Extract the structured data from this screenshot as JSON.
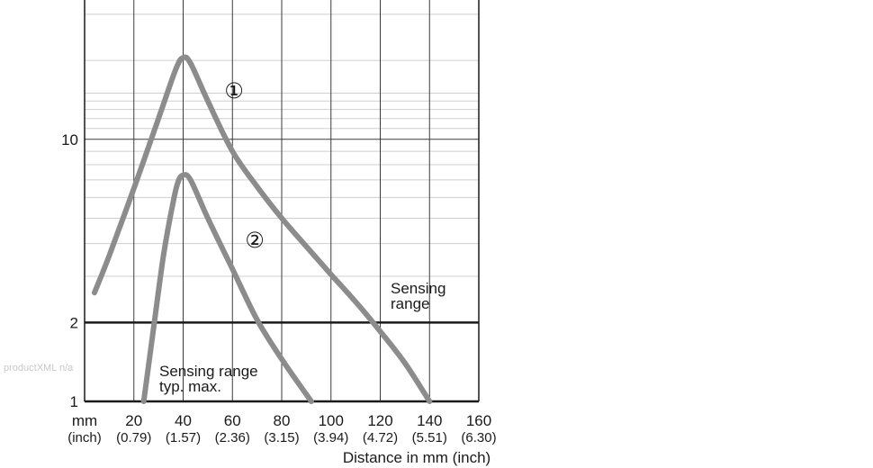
{
  "chart_data": {
    "type": "line",
    "title": "",
    "xlabel": "Distance in mm (inch)",
    "ylabel": "",
    "y_scale": "log",
    "xlim": [
      0,
      160
    ],
    "ylim": [
      1,
      34
    ],
    "grid": true,
    "x_ticks": [
      {
        "value": 0,
        "label": "mm",
        "sub": "(inch)"
      },
      {
        "value": 20,
        "label": "20",
        "sub": "(0.79)"
      },
      {
        "value": 40,
        "label": "40",
        "sub": "(1.57)"
      },
      {
        "value": 60,
        "label": "60",
        "sub": "(2.36)"
      },
      {
        "value": 80,
        "label": "80",
        "sub": "(3.15)"
      },
      {
        "value": 100,
        "label": "100",
        "sub": "(3.94)"
      },
      {
        "value": 120,
        "label": "120",
        "sub": "(4.72)"
      },
      {
        "value": 140,
        "label": "140",
        "sub": "(5.51)"
      },
      {
        "value": 160,
        "label": "160",
        "sub": "(6.30)"
      }
    ],
    "y_ticks": [
      {
        "value": 1,
        "label": "1"
      },
      {
        "value": 2,
        "label": "2"
      },
      {
        "value": 10,
        "label": "10"
      }
    ],
    "threshold": {
      "y": 2,
      "label_line1": "Sensing",
      "label_line2": "range"
    },
    "annotation": {
      "line1": "Sensing range",
      "line2": "typ. max."
    },
    "series": [
      {
        "marker": "①",
        "color": "#8c8c8c",
        "x": [
          4,
          10,
          20,
          30,
          37,
          40,
          43,
          50,
          60,
          70,
          80,
          90,
          100,
          110,
          120,
          130,
          140
        ],
        "y": [
          2.6,
          3.6,
          6.5,
          12,
          18.5,
          20.5,
          19.5,
          14,
          9,
          6.6,
          5.0,
          3.9,
          3.05,
          2.4,
          1.85,
          1.4,
          1.0
        ]
      },
      {
        "marker": "②",
        "color": "#8c8c8c",
        "x": [
          24,
          28,
          32,
          36,
          38,
          40,
          43,
          50,
          60,
          70,
          80,
          92
        ],
        "y": [
          1.0,
          1.9,
          3.6,
          5.8,
          6.9,
          7.3,
          7.0,
          5.0,
          3.2,
          2.05,
          1.45,
          1.0
        ]
      }
    ]
  },
  "watermark": "productXML n/a"
}
